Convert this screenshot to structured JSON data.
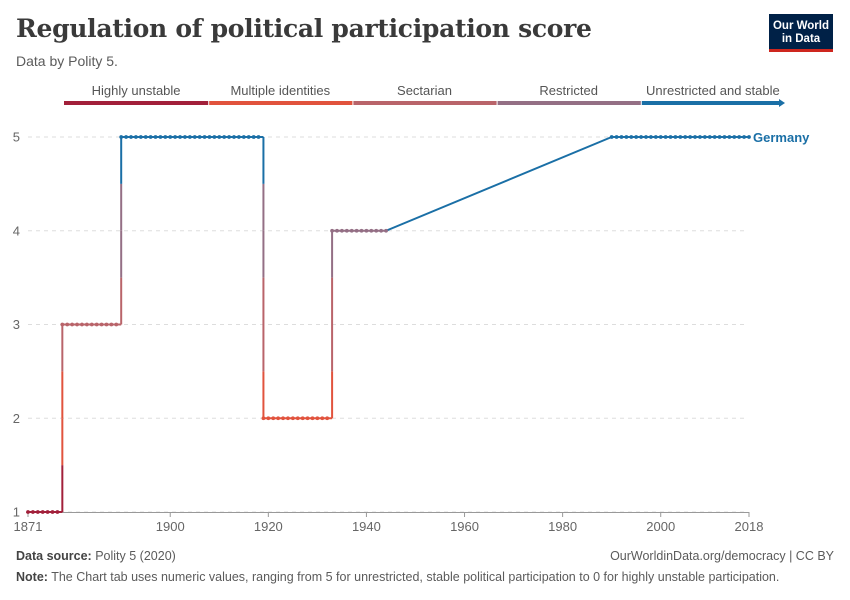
{
  "header": {
    "title": "Regulation of political participation score",
    "subtitle": "Data by Polity 5.",
    "logo_line1": "Our World",
    "logo_line2": "in Data"
  },
  "footer": {
    "source_label": "Data source:",
    "source_text": "Polity 5 (2020)",
    "url_text": "OurWorldinData.org/democracy | CC BY",
    "note_label": "Note:",
    "note_text": "The Chart tab uses numeric values, ranging from 5 for unrestricted, stable political participation to 0 for highly unstable participation."
  },
  "chart_data": {
    "type": "line",
    "title": "Regulation of political participation score",
    "subtitle": "Data by Polity 5.",
    "xlabel": "",
    "ylabel": "",
    "xlim": [
      1871,
      2018
    ],
    "ylim": [
      1,
      5
    ],
    "grid": "horizontal dashed",
    "x_ticks": [
      1871,
      1900,
      1920,
      1940,
      1960,
      1980,
      2000,
      2018
    ],
    "y_ticks": [
      1,
      2,
      3,
      4,
      5
    ],
    "legend": {
      "placement": "top",
      "items": [
        {
          "label": "Highly unstable",
          "color": "#a2203a"
        },
        {
          "label": "Multiple identities",
          "color": "#e1533d"
        },
        {
          "label": "Sectarian",
          "color": "#b9646a"
        },
        {
          "label": "Restricted",
          "color": "#946f85"
        },
        {
          "label": "Unrestricted and stable",
          "color": "#1a6fa6"
        }
      ]
    },
    "series": [
      {
        "name": "Germany",
        "color": "#1a6fa6",
        "points": [
          [
            1871,
            1
          ],
          [
            1872,
            1
          ],
          [
            1873,
            1
          ],
          [
            1874,
            1
          ],
          [
            1875,
            1
          ],
          [
            1876,
            1
          ],
          [
            1877,
            1
          ],
          [
            1878,
            3
          ],
          [
            1879,
            3
          ],
          [
            1880,
            3
          ],
          [
            1881,
            3
          ],
          [
            1882,
            3
          ],
          [
            1883,
            3
          ],
          [
            1884,
            3
          ],
          [
            1885,
            3
          ],
          [
            1886,
            3
          ],
          [
            1887,
            3
          ],
          [
            1888,
            3
          ],
          [
            1889,
            3
          ],
          [
            1890,
            5
          ],
          [
            1891,
            5
          ],
          [
            1892,
            5
          ],
          [
            1893,
            5
          ],
          [
            1894,
            5
          ],
          [
            1895,
            5
          ],
          [
            1896,
            5
          ],
          [
            1897,
            5
          ],
          [
            1898,
            5
          ],
          [
            1899,
            5
          ],
          [
            1900,
            5
          ],
          [
            1901,
            5
          ],
          [
            1902,
            5
          ],
          [
            1903,
            5
          ],
          [
            1904,
            5
          ],
          [
            1905,
            5
          ],
          [
            1906,
            5
          ],
          [
            1907,
            5
          ],
          [
            1908,
            5
          ],
          [
            1909,
            5
          ],
          [
            1910,
            5
          ],
          [
            1911,
            5
          ],
          [
            1912,
            5
          ],
          [
            1913,
            5
          ],
          [
            1914,
            5
          ],
          [
            1915,
            5
          ],
          [
            1916,
            5
          ],
          [
            1917,
            5
          ],
          [
            1918,
            5
          ],
          [
            1919,
            2
          ],
          [
            1920,
            2
          ],
          [
            1921,
            2
          ],
          [
            1922,
            2
          ],
          [
            1923,
            2
          ],
          [
            1924,
            2
          ],
          [
            1925,
            2
          ],
          [
            1926,
            2
          ],
          [
            1927,
            2
          ],
          [
            1928,
            2
          ],
          [
            1929,
            2
          ],
          [
            1930,
            2
          ],
          [
            1931,
            2
          ],
          [
            1932,
            2
          ],
          [
            1933,
            4
          ],
          [
            1934,
            4
          ],
          [
            1935,
            4
          ],
          [
            1936,
            4
          ],
          [
            1937,
            4
          ],
          [
            1938,
            4
          ],
          [
            1939,
            4
          ],
          [
            1940,
            4
          ],
          [
            1941,
            4
          ],
          [
            1942,
            4
          ],
          [
            1943,
            4
          ],
          [
            1944,
            4
          ],
          [
            1990,
            5
          ],
          [
            1991,
            5
          ],
          [
            1992,
            5
          ],
          [
            1993,
            5
          ],
          [
            1994,
            5
          ],
          [
            1995,
            5
          ],
          [
            1996,
            5
          ],
          [
            1997,
            5
          ],
          [
            1998,
            5
          ],
          [
            1999,
            5
          ],
          [
            2000,
            5
          ],
          [
            2001,
            5
          ],
          [
            2002,
            5
          ],
          [
            2003,
            5
          ],
          [
            2004,
            5
          ],
          [
            2005,
            5
          ],
          [
            2006,
            5
          ],
          [
            2007,
            5
          ],
          [
            2008,
            5
          ],
          [
            2009,
            5
          ],
          [
            2010,
            5
          ],
          [
            2011,
            5
          ],
          [
            2012,
            5
          ],
          [
            2013,
            5
          ],
          [
            2014,
            5
          ],
          [
            2015,
            5
          ],
          [
            2016,
            5
          ],
          [
            2017,
            5
          ],
          [
            2018,
            5
          ]
        ]
      }
    ]
  }
}
